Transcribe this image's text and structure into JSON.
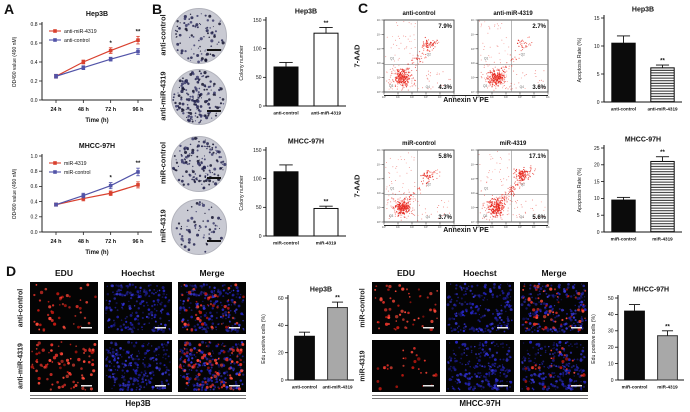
{
  "figure": {
    "panel_a": {
      "label": "A",
      "charts": [
        {
          "id": "a_hep3b",
          "type": "line",
          "title": "Hep3B",
          "xlabel": "Time (h)",
          "ylabel": "OD490 value (490 nM)",
          "categories": [
            "24 h",
            "48 h",
            "72 h",
            "96 h"
          ],
          "ylim": [
            0,
            0.8
          ],
          "yticks": [
            "0.0",
            "0.2",
            "0.4",
            "0.6",
            "0.8"
          ],
          "series": [
            {
              "name": "anti-miR-4319",
              "color": "#d9402e",
              "values": [
                0.25,
                0.4,
                0.52,
                0.63
              ],
              "err": [
                0.02,
                0.02,
                0.03,
                0.04
              ]
            },
            {
              "name": "anti-control",
              "color": "#5254a8",
              "values": [
                0.25,
                0.34,
                0.43,
                0.51
              ],
              "err": [
                0.02,
                0.02,
                0.02,
                0.03
              ]
            }
          ],
          "annotations": [
            {
              "x_index": 2,
              "label": "*"
            },
            {
              "x_index": 3,
              "label": "**"
            }
          ]
        },
        {
          "id": "a_mhcc",
          "type": "line",
          "title": "MHCC-97H",
          "xlabel": "Time (h)",
          "ylabel": "OD490 value (490 nM)",
          "categories": [
            "24 h",
            "48 h",
            "72 h",
            "96 h"
          ],
          "ylim": [
            0,
            1.0
          ],
          "yticks": [
            "0.0",
            "0.2",
            "0.4",
            "0.6",
            "0.8",
            "1.0"
          ],
          "series": [
            {
              "name": "miR-4319",
              "color": "#d9402e",
              "values": [
                0.36,
                0.44,
                0.51,
                0.62
              ],
              "err": [
                0.02,
                0.03,
                0.03,
                0.04
              ]
            },
            {
              "name": "miR-control",
              "color": "#5254a8",
              "values": [
                0.36,
                0.48,
                0.61,
                0.79
              ],
              "err": [
                0.02,
                0.03,
                0.04,
                0.05
              ]
            }
          ],
          "annotations": [
            {
              "x_index": 2,
              "label": "*"
            },
            {
              "x_index": 3,
              "label": "**"
            }
          ]
        }
      ]
    },
    "panel_b": {
      "label": "B",
      "colony_images": [
        {
          "label": "anti-control",
          "colonies": 68
        },
        {
          "label": "anti-miR-4319",
          "colonies": 127
        },
        {
          "label": "miR-control",
          "colonies": 112
        },
        {
          "label": "miR-4319",
          "colonies": 48
        }
      ],
      "charts": [
        {
          "id": "b_hep3b",
          "type": "bar",
          "title": "Hep3B",
          "ylabel": "Colony number",
          "ylim": [
            0,
            150
          ],
          "yticks": [
            "0",
            "50",
            "100",
            "150"
          ],
          "bars": [
            {
              "label": "anti-control",
              "value": 68,
              "err": 8,
              "fill": "black"
            },
            {
              "label": "anti-miR-4319",
              "value": 127,
              "err": 10,
              "fill": "white",
              "sig": "**"
            }
          ]
        },
        {
          "id": "b_mhcc",
          "type": "bar",
          "title": "MHCC-97H",
          "ylabel": "Colony number",
          "ylim": [
            0,
            150
          ],
          "yticks": [
            "0",
            "50",
            "100",
            "150"
          ],
          "bars": [
            {
              "label": "miR-control",
              "value": 112,
              "err": 12,
              "fill": "black"
            },
            {
              "label": "miR-4319",
              "value": 48,
              "err": 4,
              "fill": "white",
              "sig": "**"
            }
          ]
        }
      ]
    },
    "panel_c": {
      "label": "C",
      "quadrant_labels": [
        "Q1",
        "Q2",
        "Q3",
        "Q4"
      ],
      "flow_axis_ticks": [
        "10⁰",
        "10¹",
        "10²",
        "10³",
        "10⁴",
        "10⁵"
      ],
      "rows": [
        {
          "ylabel": "7-AAD",
          "xlabel": "Annexin V PE",
          "plots": [
            {
              "title": "anti-control",
              "q_upper_right": "7.9%",
              "q_lower_right": "4.3%"
            },
            {
              "title": "anti-miR-4319",
              "q_upper_right": "2.7%",
              "q_lower_right": "3.6%"
            }
          ],
          "chart": {
            "id": "c_hep3b",
            "type": "bar",
            "title": "Hep3B",
            "ylabel": "Apoptosis Rate (%)",
            "ylim": [
              0,
              15
            ],
            "yticks": [
              "0",
              "5",
              "10",
              "15"
            ],
            "bars": [
              {
                "label": "anti-control",
                "value": 10.5,
                "err": 1.3,
                "fill": "black"
              },
              {
                "label": "anti-miR-4319",
                "value": 6.1,
                "err": 0.5,
                "fill": "hatch",
                "sig": "**"
              }
            ]
          }
        },
        {
          "ylabel": "7-AAD",
          "xlabel": "Annexin V PE",
          "plots": [
            {
              "title": "miR-control",
              "q_upper_right": "5.8%",
              "q_lower_right": "3.7%"
            },
            {
              "title": "miR-4319",
              "q_upper_right": "17.1%",
              "q_lower_right": "5.6%"
            }
          ],
          "chart": {
            "id": "c_mhcc",
            "type": "bar",
            "title": "MHCC-97H",
            "ylabel": "Apoptosis Rate (%)",
            "ylim": [
              0,
              25
            ],
            "yticks": [
              "0",
              "5",
              "10",
              "15",
              "20",
              "25"
            ],
            "bars": [
              {
                "label": "miR-control",
                "value": 9.5,
                "err": 0.8,
                "fill": "black"
              },
              {
                "label": "miR-4319",
                "value": 21,
                "err": 1.4,
                "fill": "hatch",
                "sig": "**"
              }
            ]
          }
        }
      ]
    },
    "panel_d": {
      "label": "D",
      "blocks": [
        {
          "cell_line": "Hep3B",
          "columns": [
            "EDU",
            "Hoechst",
            "Merge"
          ],
          "rows": [
            {
              "label": "anti-control",
              "red_density": 48,
              "blue_density": 210
            },
            {
              "label": "anti-miR-4319",
              "red_density": 90,
              "blue_density": 240
            }
          ],
          "chart": {
            "id": "d_hep3b",
            "type": "bar",
            "title": "Hep3B",
            "ylabel": "Edu positive cells (%)",
            "ylim": [
              0,
              60
            ],
            "yticks": [
              "0",
              "20",
              "40",
              "60"
            ],
            "bars": [
              {
                "label": "anti-control",
                "value": 32,
                "err": 3,
                "fill": "black"
              },
              {
                "label": "anti-miR-4319",
                "value": 53,
                "err": 4,
                "fill": "gray",
                "sig": "**"
              }
            ]
          }
        },
        {
          "cell_line": "MHCC-97H",
          "columns": [
            "EDU",
            "Hoechst",
            "Merge"
          ],
          "rows": [
            {
              "label": "miR-control",
              "red_density": 62,
              "blue_density": 200
            },
            {
              "label": "miR-4319",
              "red_density": 30,
              "blue_density": 235
            }
          ],
          "chart": {
            "id": "d_mhcc",
            "type": "bar",
            "title": "MHCC-97H",
            "ylabel": "Edu positive cells (%)",
            "ylim": [
              0,
              50
            ],
            "yticks": [
              "0",
              "10",
              "20",
              "30",
              "40",
              "50"
            ],
            "bars": [
              {
                "label": "miR-control",
                "value": 42,
                "err": 4,
                "fill": "black"
              },
              {
                "label": "miR-4319",
                "value": 27,
                "err": 3,
                "fill": "gray",
                "sig": "**"
              }
            ]
          }
        }
      ]
    }
  }
}
